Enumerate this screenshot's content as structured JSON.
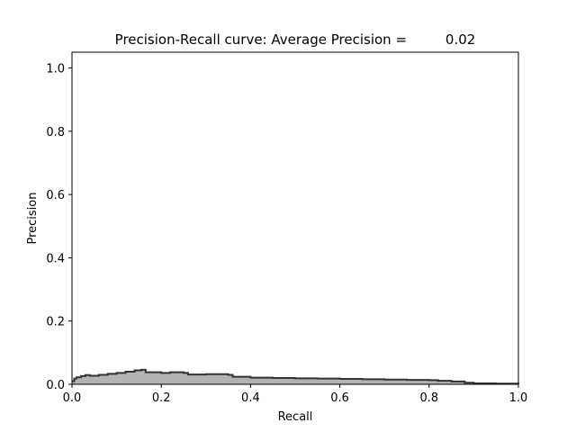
{
  "chart_data": {
    "type": "area",
    "title": "Precision-Recall curve: Average Precision =         0.02",
    "xlabel": "Recall",
    "ylabel": "Precision",
    "xlim": [
      0.0,
      1.0
    ],
    "ylim": [
      0.0,
      1.05
    ],
    "xticks": [
      "0.0",
      "0.2",
      "0.4",
      "0.6",
      "0.8",
      "1.0"
    ],
    "yticks": [
      "0.0",
      "0.2",
      "0.4",
      "0.6",
      "0.8",
      "1.0"
    ],
    "grid": false,
    "step": "post",
    "fill_color": "#b3b3b3",
    "line_color": "#333333",
    "x": [
      0.0,
      0.005,
      0.01,
      0.02,
      0.03,
      0.04,
      0.06,
      0.08,
      0.1,
      0.12,
      0.14,
      0.155,
      0.165,
      0.2,
      0.22,
      0.25,
      0.26,
      0.3,
      0.35,
      0.36,
      0.4,
      0.45,
      0.5,
      0.55,
      0.6,
      0.65,
      0.7,
      0.75,
      0.8,
      0.82,
      0.85,
      0.88,
      0.9,
      0.95,
      1.0
    ],
    "y": [
      0.01,
      0.018,
      0.022,
      0.026,
      0.029,
      0.027,
      0.03,
      0.033,
      0.036,
      0.04,
      0.044,
      0.046,
      0.038,
      0.036,
      0.038,
      0.036,
      0.031,
      0.032,
      0.03,
      0.024,
      0.021,
      0.02,
      0.019,
      0.018,
      0.017,
      0.016,
      0.015,
      0.014,
      0.013,
      0.011,
      0.009,
      0.005,
      0.003,
      0.002,
      0.001
    ]
  }
}
